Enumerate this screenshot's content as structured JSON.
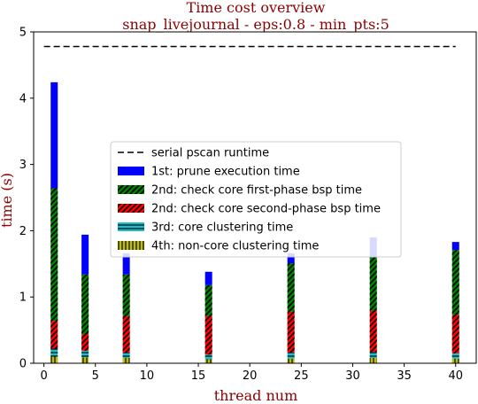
{
  "chart_data": {
    "type": "bar",
    "stacked": true,
    "title": "Time cost overview",
    "subtitle": "snap_livejournal - eps:0.8 - min_pts:5",
    "xlabel": "thread num",
    "ylabel": "time (s)",
    "xlim": [
      -1,
      42
    ],
    "ylim": [
      0,
      5
    ],
    "xticks": [
      0,
      5,
      10,
      15,
      20,
      25,
      30,
      35,
      40
    ],
    "yticks": [
      0,
      1,
      2,
      3,
      4,
      5
    ],
    "x": [
      1,
      4,
      8,
      16,
      24,
      32,
      40
    ],
    "serial_runtime": 4.78,
    "series": [
      {
        "name": "4th: non-core clustering time",
        "color": "#bfbf00",
        "hatch": "vertical",
        "values": [
          0.1,
          0.09,
          0.08,
          0.06,
          0.07,
          0.08,
          0.07
        ]
      },
      {
        "name": "3rd: core clustering time",
        "color": "#17becf",
        "hatch": "horizontal",
        "values": [
          0.12,
          0.1,
          0.08,
          0.07,
          0.09,
          0.09,
          0.08
        ]
      },
      {
        "name": "2nd: check core second-phase bsp time",
        "color": "#ff0000",
        "hatch": "diagonal",
        "values": [
          0.42,
          0.25,
          0.55,
          0.58,
          0.62,
          0.62,
          0.58
        ]
      },
      {
        "name": "2nd: check core first-phase bsp time",
        "color": "#008000",
        "hatch": "diagonal",
        "values": [
          2.0,
          0.9,
          0.63,
          0.47,
          0.73,
          0.81,
          0.98
        ]
      },
      {
        "name": "1st: prune execution time",
        "color": "#0000ff",
        "hatch": "none",
        "values": [
          1.6,
          0.6,
          0.32,
          0.2,
          0.15,
          0.3,
          0.12
        ]
      }
    ],
    "legend": {
      "placement": "center",
      "entries": [
        {
          "label": "serial pscan runtime",
          "kind": "line"
        },
        {
          "label": "1st: prune execution time",
          "color": "#0000ff",
          "hatch": "none"
        },
        {
          "label": "2nd: check core first-phase bsp time",
          "color": "#008000",
          "hatch": "diagonal"
        },
        {
          "label": "2nd: check core second-phase bsp time",
          "color": "#ff0000",
          "hatch": "diagonal"
        },
        {
          "label": "3rd: core clustering time",
          "color": "#17becf",
          "hatch": "horizontal"
        },
        {
          "label": "4th: non-core clustering time",
          "color": "#bfbf00",
          "hatch": "vertical"
        }
      ]
    }
  }
}
